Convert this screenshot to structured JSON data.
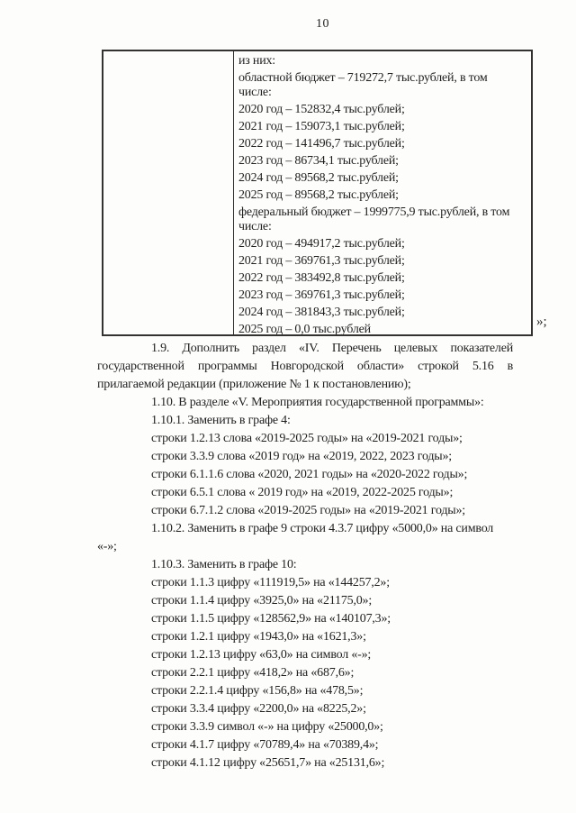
{
  "page": {
    "number": "10"
  },
  "colors": {
    "ink": "#1f1f1f",
    "table_border": "#333230",
    "background": "#fdfdfc"
  },
  "table": {
    "left_cell_text": "",
    "right_cell_lines": [
      {
        "text": "из них:"
      },
      {
        "text": "областной бюджет – 719272,7 тыс.рублей, в том числе:"
      },
      {
        "text": "2020 год – 152832,4 тыс.рублей;"
      },
      {
        "text": "2021 год – 159073,1 тыс.рублей;"
      },
      {
        "text": "2022 год – 141496,7 тыс.рублей;"
      },
      {
        "text": "2023 год – 86734,1 тыс.рублей;"
      },
      {
        "text": "2024 год – 89568,2 тыс.рублей;"
      },
      {
        "text": "2025 год – 89568,2 тыс.рублей;"
      },
      {
        "text": "федеральный бюджет – 1999775,9 тыс.рублей, в том числе:"
      },
      {
        "text": "2020 год – 494917,2 тыс.рублей;"
      },
      {
        "text": "2021 год – 369761,3 тыс.рублей;"
      },
      {
        "text": "2022 год – 383492,8 тыс.рублей;"
      },
      {
        "text": "2023 год – 369761,3 тыс.рублей;"
      },
      {
        "text": "2024 год – 381843,3 тыс.рублей;"
      },
      {
        "text": "2025 год – 0,0 тыс.рублей"
      }
    ],
    "closing_mark": "»;"
  },
  "body": {
    "paragraphs": [
      {
        "text": "1.9. Дополнить раздел «IV. Перечень целевых показателей государственной программы Новгородской области» строкой 5.16 в прилагаемой редакции (приложение № 1 к постановлению);",
        "class": "justify"
      },
      {
        "text": "1.10. В разделе «V. Мероприятия государственной программы»:"
      },
      {
        "text": "1.10.1. Заменить в графе 4:"
      },
      {
        "text": "строки 1.2.13 слова «2019-2025 годы» на «2019-2021 годы»;"
      },
      {
        "text": "строки 3.3.9 слова «2019 год» на «2019, 2022, 2023 годы»;"
      },
      {
        "text": "строки 6.1.1.6 слова «2020, 2021 годы» на «2020-2022 годы»;"
      },
      {
        "text": "строки 6.5.1 слова « 2019 год» на «2019, 2022-2025 годы»;"
      },
      {
        "text": "строки 6.7.1.2 слова «2019-2025 годы» на «2019-2021 годы»;"
      },
      {
        "text": "1.10.2. Заменить в графе 9 строки 4.3.7 цифру «5000,0» на символ «-»;"
      },
      {
        "text": "1.10.3. Заменить в графе 10:"
      },
      {
        "text": "строки 1.1.3 цифру «111919,5» на «144257,2»;"
      },
      {
        "text": "строки 1.1.4 цифру «3925,0» на «21175,0»;"
      },
      {
        "text": "строки 1.1.5 цифру «128562,9» на «140107,3»;"
      },
      {
        "text": "строки 1.2.1 цифру «1943,0» на «1621,3»;"
      },
      {
        "text": "строки 1.2.13 цифру «63,0» на символ «-»;"
      },
      {
        "text": "строки 2.2.1 цифру «418,2» на «687,6»;"
      },
      {
        "text": "строки 2.2.1.4 цифру «156,8» на «478,5»;"
      },
      {
        "text": "строки 3.3.4 цифру «2200,0» на «8225,2»;"
      },
      {
        "text": "строки 3.3.9 символ «-» на цифру «25000,0»;"
      },
      {
        "text": "строки 4.1.7 цифру «70789,4» на «70389,4»;"
      },
      {
        "text": "строки 4.1.12 цифру «25651,7» на «25131,6»;"
      }
    ]
  }
}
